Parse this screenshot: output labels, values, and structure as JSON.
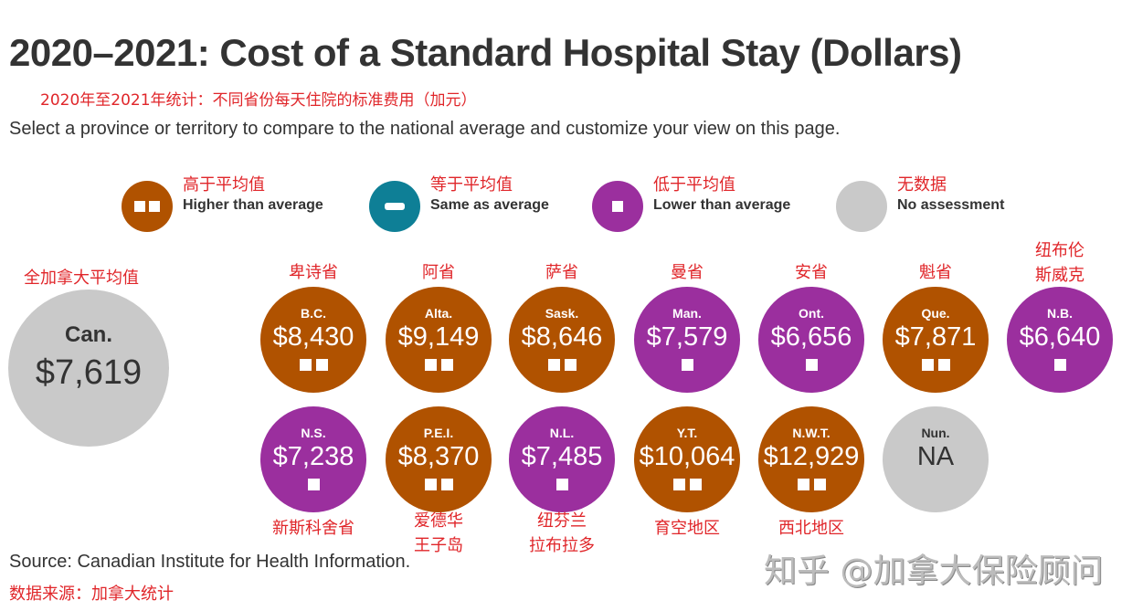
{
  "title": "2020–2021: Cost of a Standard Hospital Stay (Dollars)",
  "subtitle_cn": "2020年至2021年统计：不同省份每天住院的标准费用（加元）",
  "intro": "Select a province or territory to compare to the national average and customize your view on this page.",
  "colors": {
    "higher": "#b05200",
    "same": "#0e7f96",
    "lower": "#9b2f9e",
    "none": "#c9c9c9",
    "cn_text": "#e0262a"
  },
  "legend": [
    {
      "key": "higher",
      "cn": "高于平均值",
      "en": "Higher than average",
      "icon": "two-squares-icon"
    },
    {
      "key": "same",
      "cn": "等于平均值",
      "en": "Same as average",
      "icon": "dash-icon"
    },
    {
      "key": "lower",
      "cn": "低于平均值",
      "en": "Lower than average",
      "icon": "square-icon"
    },
    {
      "key": "none",
      "cn": "无数据",
      "en": "No assessment",
      "icon": "none"
    }
  ],
  "national": {
    "cn": "全加拿大平均值",
    "abbr": "Can.",
    "value": "$7,619"
  },
  "chart_data": {
    "type": "table",
    "title": "2020–2021: Cost of a Standard Hospital Stay (Dollars)",
    "national_average": 7619,
    "items": [
      {
        "abbr": "B.C.",
        "cn": "卑诗省",
        "display": "$8,430",
        "value": 8430,
        "status": "higher"
      },
      {
        "abbr": "Alta.",
        "cn": "阿省",
        "display": "$9,149",
        "value": 9149,
        "status": "higher"
      },
      {
        "abbr": "Sask.",
        "cn": "萨省",
        "display": "$8,646",
        "value": 8646,
        "status": "higher"
      },
      {
        "abbr": "Man.",
        "cn": "曼省",
        "display": "$7,579",
        "value": 7579,
        "status": "lower"
      },
      {
        "abbr": "Ont.",
        "cn": "安省",
        "display": "$6,656",
        "value": 6656,
        "status": "lower"
      },
      {
        "abbr": "Que.",
        "cn": "魁省",
        "display": "$7,871",
        "value": 7871,
        "status": "higher"
      },
      {
        "abbr": "N.B.",
        "cn": "纽布伦\n斯威克",
        "display": "$6,640",
        "value": 6640,
        "status": "lower"
      },
      {
        "abbr": "N.S.",
        "cn": "新斯科舍省",
        "display": "$7,238",
        "value": 7238,
        "status": "lower"
      },
      {
        "abbr": "P.E.I.",
        "cn": "爱德华\n王子岛",
        "display": "$8,370",
        "value": 8370,
        "status": "higher"
      },
      {
        "abbr": "N.L.",
        "cn": "纽芬兰\n拉布拉多",
        "display": "$7,485",
        "value": 7485,
        "status": "lower"
      },
      {
        "abbr": "Y.T.",
        "cn": "育空地区",
        "display": "$10,064",
        "value": 10064,
        "status": "higher"
      },
      {
        "abbr": "N.W.T.",
        "cn": "西北地区",
        "display": "$12,929",
        "value": 12929,
        "status": "higher"
      },
      {
        "abbr": "Nun.",
        "cn": "",
        "display": "NA",
        "value": null,
        "status": "none"
      }
    ]
  },
  "source": "Source: Canadian Institute for Health Information.",
  "source_cn": "数据来源：加拿大统计",
  "watermark": "知乎 @加拿大保险顾问"
}
